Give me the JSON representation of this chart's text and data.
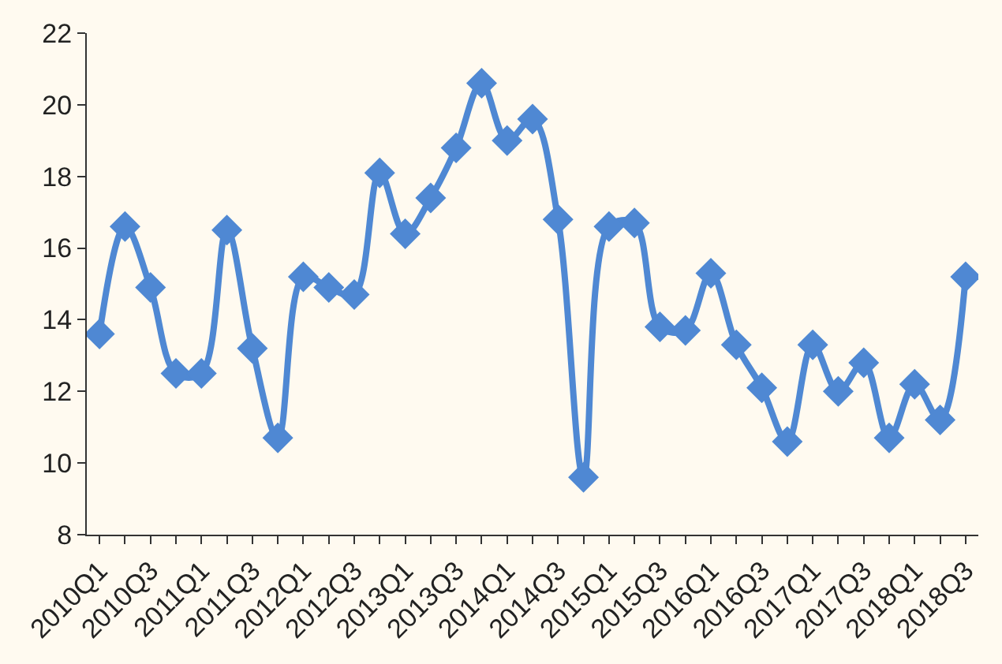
{
  "chart_data": {
    "type": "line",
    "categories": [
      "2010Q1",
      null,
      "2010Q3",
      null,
      "2011Q1",
      null,
      "2011Q3",
      null,
      "2012Q1",
      null,
      "2012Q3",
      null,
      "2013Q1",
      null,
      "2013Q3",
      null,
      "2014Q1",
      null,
      "2014Q3",
      null,
      "2015Q1",
      null,
      "2015Q3",
      null,
      "2016Q1",
      null,
      "2016Q3",
      null,
      "2017Q1",
      null,
      "2017Q3",
      null,
      "2018Q1",
      null,
      "2018Q3"
    ],
    "series": [
      {
        "color": "#4f88d3",
        "values": [
          13.6,
          16.6,
          14.9,
          12.5,
          12.5,
          16.5,
          13.2,
          10.7,
          15.2,
          14.9,
          14.7,
          18.1,
          16.4,
          17.4,
          18.8,
          20.6,
          19.0,
          19.6,
          16.8,
          9.6,
          16.6,
          16.7,
          13.8,
          13.7,
          15.3,
          13.3,
          12.1,
          10.6,
          13.3,
          12.0,
          12.8,
          10.7,
          12.2,
          11.2,
          15.2
        ]
      }
    ],
    "ylim": [
      8,
      22
    ],
    "yticks": [
      8,
      10,
      12,
      14,
      16,
      18,
      20,
      22
    ],
    "grid": false,
    "legend": false,
    "marker": "diamond",
    "line_style": "solid"
  }
}
